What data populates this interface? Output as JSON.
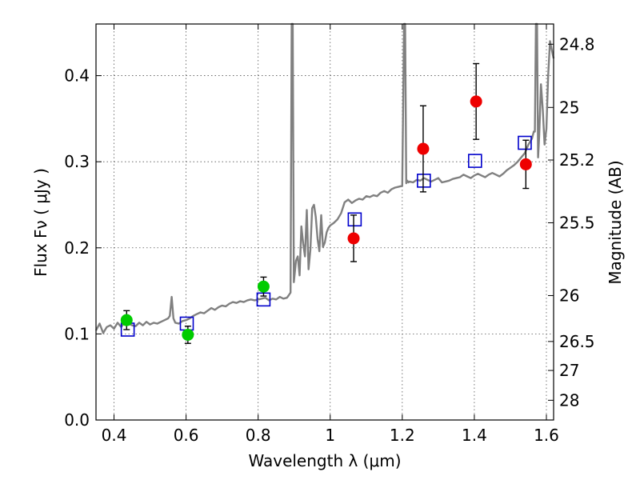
{
  "chart_data": {
    "type": "scatter",
    "xlabel": "Wavelength  λ (μm)",
    "ylabel": "Flux  Fν  ( μJy )",
    "ylabel_right": "Magnitude (AB)",
    "xlim": [
      0.35,
      1.62
    ],
    "ylim": [
      0.0,
      0.46
    ],
    "x_ticks": [
      0.4,
      0.6,
      0.8,
      1.0,
      1.2,
      1.4,
      1.6
    ],
    "x_tick_labels": [
      "0.4",
      "0.6",
      "0.8",
      "1",
      "1.2",
      "1.4",
      "1.6"
    ],
    "y_ticks": [
      0.0,
      0.1,
      0.2,
      0.3,
      0.4
    ],
    "y_tick_labels": [
      "0.0",
      "0.1",
      "0.2",
      "0.3",
      "0.4"
    ],
    "right_ticks": [
      24.8,
      25,
      25.2,
      25.5,
      26,
      26.5,
      27,
      28
    ],
    "right_tick_labels": [
      "24.8",
      "25",
      "25.2",
      "25.5",
      "26",
      "26.5",
      "27",
      "28"
    ],
    "grid": true,
    "colors": {
      "spectrum": "#808080",
      "optical": "#00cc00",
      "nir": "#ee0000",
      "model": "#0000cc"
    },
    "series": [
      {
        "kind": "spectrum",
        "x": [
          0.35,
          0.36,
          0.37,
          0.38,
          0.39,
          0.4,
          0.41,
          0.42,
          0.43,
          0.44,
          0.45,
          0.46,
          0.47,
          0.48,
          0.49,
          0.5,
          0.51,
          0.52,
          0.53,
          0.54,
          0.55,
          0.555,
          0.56,
          0.565,
          0.57,
          0.58,
          0.59,
          0.6,
          0.61,
          0.62,
          0.63,
          0.64,
          0.65,
          0.66,
          0.67,
          0.68,
          0.69,
          0.7,
          0.71,
          0.72,
          0.73,
          0.74,
          0.75,
          0.76,
          0.77,
          0.78,
          0.79,
          0.8,
          0.81,
          0.82,
          0.83,
          0.84,
          0.85,
          0.86,
          0.87,
          0.88,
          0.885,
          0.89,
          0.893,
          0.896,
          0.899,
          0.902,
          0.905,
          0.91,
          0.915,
          0.92,
          0.925,
          0.93,
          0.935,
          0.94,
          0.945,
          0.95,
          0.955,
          0.96,
          0.965,
          0.97,
          0.975,
          0.98,
          0.985,
          0.99,
          0.995,
          1.0,
          1.01,
          1.02,
          1.03,
          1.04,
          1.05,
          1.06,
          1.07,
          1.08,
          1.09,
          1.1,
          1.11,
          1.12,
          1.13,
          1.14,
          1.15,
          1.16,
          1.17,
          1.18,
          1.19,
          1.2,
          1.205,
          1.208,
          1.211,
          1.214,
          1.217,
          1.22,
          1.23,
          1.24,
          1.25,
          1.26,
          1.27,
          1.28,
          1.29,
          1.3,
          1.31,
          1.32,
          1.33,
          1.34,
          1.35,
          1.36,
          1.37,
          1.38,
          1.39,
          1.4,
          1.41,
          1.42,
          1.43,
          1.44,
          1.45,
          1.46,
          1.47,
          1.48,
          1.49,
          1.5,
          1.51,
          1.52,
          1.53,
          1.54,
          1.55,
          1.56,
          1.565,
          1.568,
          1.571,
          1.574,
          1.577,
          1.58,
          1.585,
          1.59,
          1.595,
          1.6,
          1.605,
          1.61,
          1.615,
          1.62
        ],
        "y": [
          0.104,
          0.112,
          0.101,
          0.108,
          0.11,
          0.106,
          0.113,
          0.108,
          0.114,
          0.112,
          0.11,
          0.109,
          0.113,
          0.11,
          0.114,
          0.111,
          0.113,
          0.112,
          0.114,
          0.116,
          0.118,
          0.121,
          0.143,
          0.118,
          0.113,
          0.112,
          0.115,
          0.116,
          0.118,
          0.121,
          0.123,
          0.125,
          0.124,
          0.127,
          0.13,
          0.128,
          0.131,
          0.133,
          0.132,
          0.135,
          0.137,
          0.136,
          0.138,
          0.137,
          0.139,
          0.14,
          0.139,
          0.14,
          0.141,
          0.142,
          0.139,
          0.141,
          0.14,
          0.143,
          0.141,
          0.142,
          0.145,
          0.148,
          0.46,
          0.46,
          0.16,
          0.172,
          0.185,
          0.19,
          0.168,
          0.225,
          0.205,
          0.19,
          0.244,
          0.175,
          0.198,
          0.246,
          0.25,
          0.236,
          0.21,
          0.196,
          0.238,
          0.201,
          0.206,
          0.218,
          0.223,
          0.226,
          0.229,
          0.233,
          0.24,
          0.253,
          0.256,
          0.252,
          0.255,
          0.257,
          0.256,
          0.26,
          0.259,
          0.261,
          0.26,
          0.264,
          0.266,
          0.264,
          0.268,
          0.27,
          0.271,
          0.272,
          0.46,
          0.46,
          0.275,
          0.278,
          0.276,
          0.277,
          0.276,
          0.279,
          0.278,
          0.281,
          0.279,
          0.277,
          0.279,
          0.281,
          0.276,
          0.277,
          0.278,
          0.28,
          0.281,
          0.282,
          0.285,
          0.283,
          0.281,
          0.284,
          0.286,
          0.284,
          0.282,
          0.285,
          0.287,
          0.285,
          0.283,
          0.286,
          0.29,
          0.293,
          0.296,
          0.3,
          0.305,
          0.31,
          0.32,
          0.327,
          0.335,
          0.335,
          0.46,
          0.46,
          0.305,
          0.33,
          0.39,
          0.36,
          0.32,
          0.338,
          0.4,
          0.44,
          0.43,
          0.42
        ]
      },
      {
        "kind": "model",
        "name": "",
        "x": [
          0.438,
          0.602,
          0.815,
          1.068,
          1.26,
          1.402,
          1.54
        ],
        "y": [
          0.105,
          0.112,
          0.14,
          0.233,
          0.278,
          0.301,
          0.322
        ]
      },
      {
        "kind": "optical",
        "name": "",
        "x": [
          0.435,
          0.605,
          0.815
        ],
        "y": [
          0.116,
          0.099,
          0.155
        ],
        "err": [
          0.011,
          0.01,
          0.011
        ]
      },
      {
        "kind": "nir",
        "name": "",
        "x": [
          1.065,
          1.258,
          1.405,
          1.543
        ],
        "y": [
          0.211,
          0.315,
          0.37,
          0.297
        ],
        "err": [
          0.027,
          0.05,
          0.044,
          0.028
        ]
      }
    ]
  }
}
